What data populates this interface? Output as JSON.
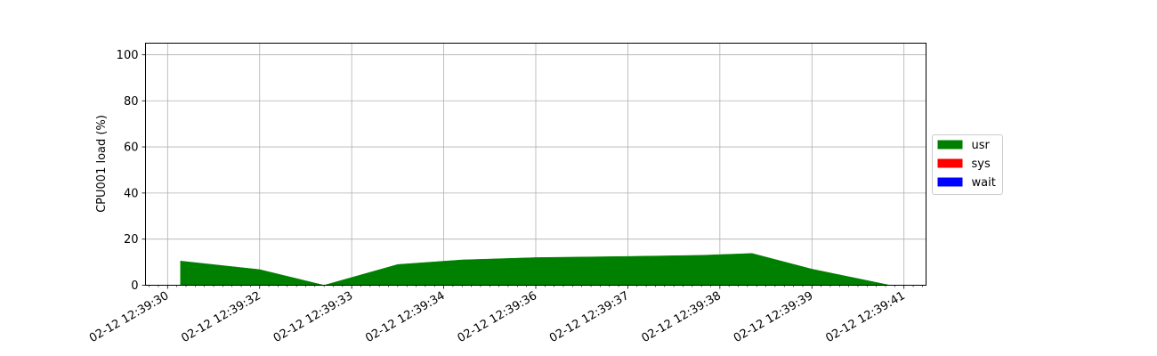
{
  "chart_data": {
    "type": "area",
    "title": "",
    "ylabel": "CPU001 load (%)",
    "xlabel": "",
    "ylim": [
      0,
      105
    ],
    "yticks": [
      0,
      20,
      40,
      60,
      80,
      100
    ],
    "grid": true,
    "legend_position": "right",
    "xticks": [
      {
        "label": "02-12 12:39:30",
        "x": 0.7
      },
      {
        "label": "02-12 12:39:32",
        "x": 1.7
      },
      {
        "label": "02-12 12:39:33",
        "x": 2.7
      },
      {
        "label": "02-12 12:39:34",
        "x": 3.7
      },
      {
        "label": "02-12 12:39:36",
        "x": 4.7
      },
      {
        "label": "02-12 12:39:37",
        "x": 5.7
      },
      {
        "label": "02-12 12:39:38",
        "x": 6.7
      },
      {
        "label": "02-12 12:39:39",
        "x": 7.7
      },
      {
        "label": "02-12 12:39:41",
        "x": 8.7
      }
    ],
    "xlim": [
      0.46,
      8.94
    ],
    "series": [
      {
        "name": "usr",
        "color": "#008000",
        "points": [
          [
            0.84,
            10.5
          ],
          [
            1.7,
            6.8
          ],
          [
            2.4,
            0.0
          ],
          [
            3.2,
            9.0
          ],
          [
            3.9,
            11.0
          ],
          [
            4.7,
            12.0
          ],
          [
            5.7,
            12.5
          ],
          [
            6.5,
            13.0
          ],
          [
            7.05,
            13.8
          ],
          [
            7.7,
            7.0
          ],
          [
            8.55,
            0.0
          ]
        ]
      },
      {
        "name": "sys",
        "color": "#ff0000",
        "points": []
      },
      {
        "name": "wait",
        "color": "#0000ff",
        "points": []
      }
    ]
  }
}
